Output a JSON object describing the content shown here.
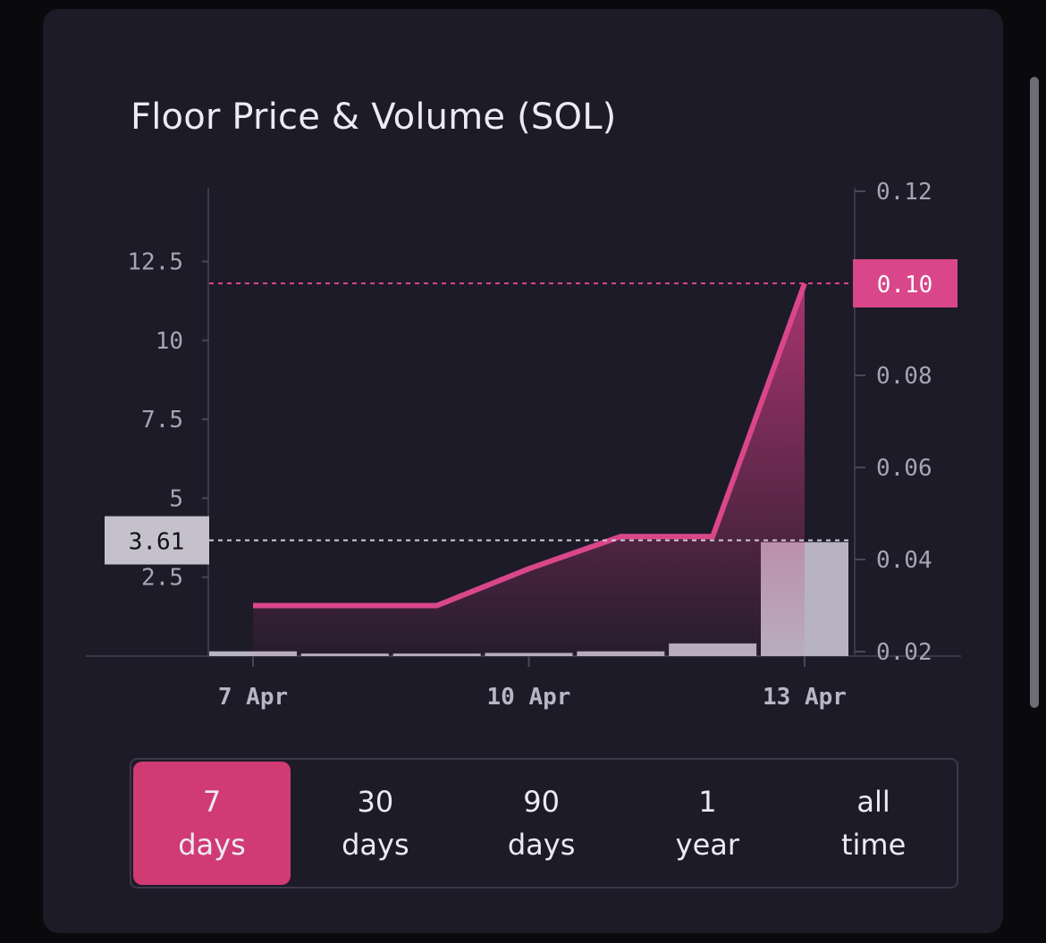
{
  "title": "Floor Price & Volume (SOL)",
  "range_buttons": [
    {
      "line1": "7",
      "line2": "days",
      "active": true
    },
    {
      "line1": "30",
      "line2": "days",
      "active": false
    },
    {
      "line1": "90",
      "line2": "days",
      "active": false
    },
    {
      "line1": "1",
      "line2": "year",
      "active": false
    },
    {
      "line1": "all",
      "line2": "time",
      "active": false
    }
  ],
  "colors": {
    "line": "#d9478a",
    "bar": "#b8b3c2",
    "accent_label": "#d9478a"
  },
  "chart_data": {
    "type": "line",
    "x_labels": [
      "7 Apr",
      "10 Apr",
      "13 Apr"
    ],
    "x": [
      "7 Apr",
      "8 Apr",
      "9 Apr",
      "10 Apr",
      "11 Apr",
      "12 Apr",
      "13 Apr"
    ],
    "series": [
      {
        "axis": "left",
        "type": "bar",
        "values": [
          0.15,
          0.08,
          0.08,
          0.1,
          0.15,
          0.4,
          3.61
        ]
      },
      {
        "axis": "right",
        "type": "line",
        "values": [
          0.03,
          0.03,
          0.03,
          0.038,
          0.045,
          0.045,
          0.1
        ]
      }
    ],
    "left_axis": {
      "ticks": [
        "2.5",
        "5",
        "7.5",
        "10",
        "12.5"
      ],
      "tick_values": [
        2.5,
        5,
        7.5,
        10,
        12.5
      ],
      "current_label": "3.61",
      "current_value": 3.61
    },
    "right_axis": {
      "ticks": [
        "0.02",
        "0.04",
        "0.06",
        "0.08",
        "0.10",
        "0.12"
      ],
      "tick_values": [
        0.02,
        0.04,
        0.06,
        0.08,
        0.1,
        0.12
      ],
      "current_label": "0.10",
      "current_value": 0.1
    },
    "grid": false
  }
}
